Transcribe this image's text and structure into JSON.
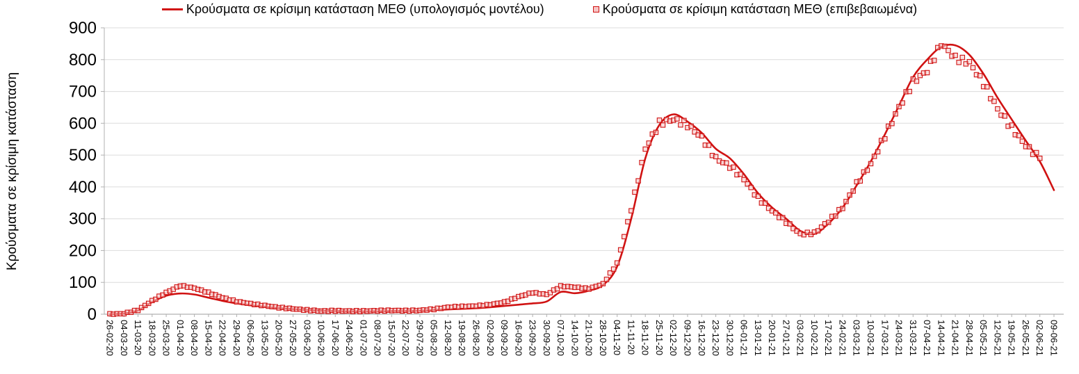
{
  "chart_data": {
    "type": "line",
    "title": "",
    "xlabel": "",
    "ylabel": "Κρούσματα σε κρίσιμη κατάσταση",
    "ylim": [
      0,
      900
    ],
    "yticks": [
      0,
      100,
      200,
      300,
      400,
      500,
      600,
      700,
      800,
      900
    ],
    "grid": "horizontal",
    "legend_position": "top-center",
    "colors": {
      "model_line": "#d01212",
      "confirmed_marker": "#d01212",
      "confirmed_fill": "#f6c5c5",
      "grid": "#dcdcdc",
      "axis": "#b0b0b0",
      "text": "#000000",
      "background": "#ffffff"
    },
    "categories": [
      "26-02-20",
      "04-03-20",
      "11-03-20",
      "18-03-20",
      "25-03-20",
      "01-04-20",
      "08-04-20",
      "15-04-20",
      "22-04-20",
      "29-04-20",
      "06-05-20",
      "13-05-20",
      "20-05-20",
      "27-05-20",
      "03-06-20",
      "10-06-20",
      "17-06-20",
      "24-06-20",
      "01-07-20",
      "08-07-20",
      "15-07-20",
      "22-07-20",
      "29-07-20",
      "05-08-20",
      "12-08-20",
      "19-08-20",
      "26-08-20",
      "02-09-20",
      "09-09-20",
      "16-09-20",
      "23-09-20",
      "30-09-20",
      "07-10-20",
      "14-10-20",
      "21-10-20",
      "28-10-20",
      "04-11-20",
      "11-11-20",
      "18-11-20",
      "25-11-20",
      "02-12-20",
      "09-12-20",
      "16-12-20",
      "23-12-20",
      "30-12-20",
      "06-01-21",
      "13-01-21",
      "20-01-21",
      "27-01-21",
      "03-02-21",
      "10-02-21",
      "17-02-21",
      "24-02-21",
      "03-03-21",
      "10-03-21",
      "17-03-21",
      "24-03-21",
      "31-03-21",
      "07-04-21",
      "14-04-21",
      "21-04-21",
      "28-04-21",
      "05-05-21",
      "12-05-21",
      "19-05-21",
      "26-05-21",
      "02-06-21",
      "09-06-21"
    ],
    "series": [
      {
        "name": "Κρούσματα σε κρίσιμη κατάσταση ΜΕΘ (υπολογισμός μοντέλου)",
        "type": "line",
        "values": [
          0,
          2,
          12,
          38,
          58,
          65,
          62,
          52,
          42,
          34,
          28,
          23,
          19,
          16,
          13,
          11,
          10,
          9,
          9,
          9,
          10,
          10,
          11,
          13,
          15,
          17,
          19,
          22,
          26,
          30,
          34,
          40,
          70,
          66,
          74,
          92,
          150,
          300,
          490,
          595,
          628,
          605,
          570,
          520,
          490,
          440,
          380,
          335,
          300,
          262,
          252,
          285,
          335,
          405,
          480,
          565,
          655,
          745,
          800,
          840,
          845,
          815,
          755,
          680,
          612,
          545,
          480,
          390
        ]
      },
      {
        "name": "Κρούσματα σε κρίσιμη κατάσταση ΜΕΘ (επιβεβαιωμένα)",
        "type": "scatter",
        "values": [
          0,
          2,
          13,
          42,
          68,
          90,
          82,
          68,
          52,
          40,
          33,
          27,
          21,
          17,
          13,
          10,
          11,
          10,
          10,
          11,
          12,
          11,
          12,
          16,
          22,
          24,
          26,
          30,
          38,
          55,
          68,
          62,
          88,
          85,
          80,
          95,
          160,
          330,
          520,
          600,
          612,
          595,
          555,
          490,
          465,
          425,
          365,
          325,
          290,
          252,
          255,
          292,
          335,
          410,
          472,
          560,
          650,
          730,
          765,
          850,
          805,
          790,
          725,
          645,
          585,
          530,
          490,
          null
        ]
      }
    ]
  }
}
